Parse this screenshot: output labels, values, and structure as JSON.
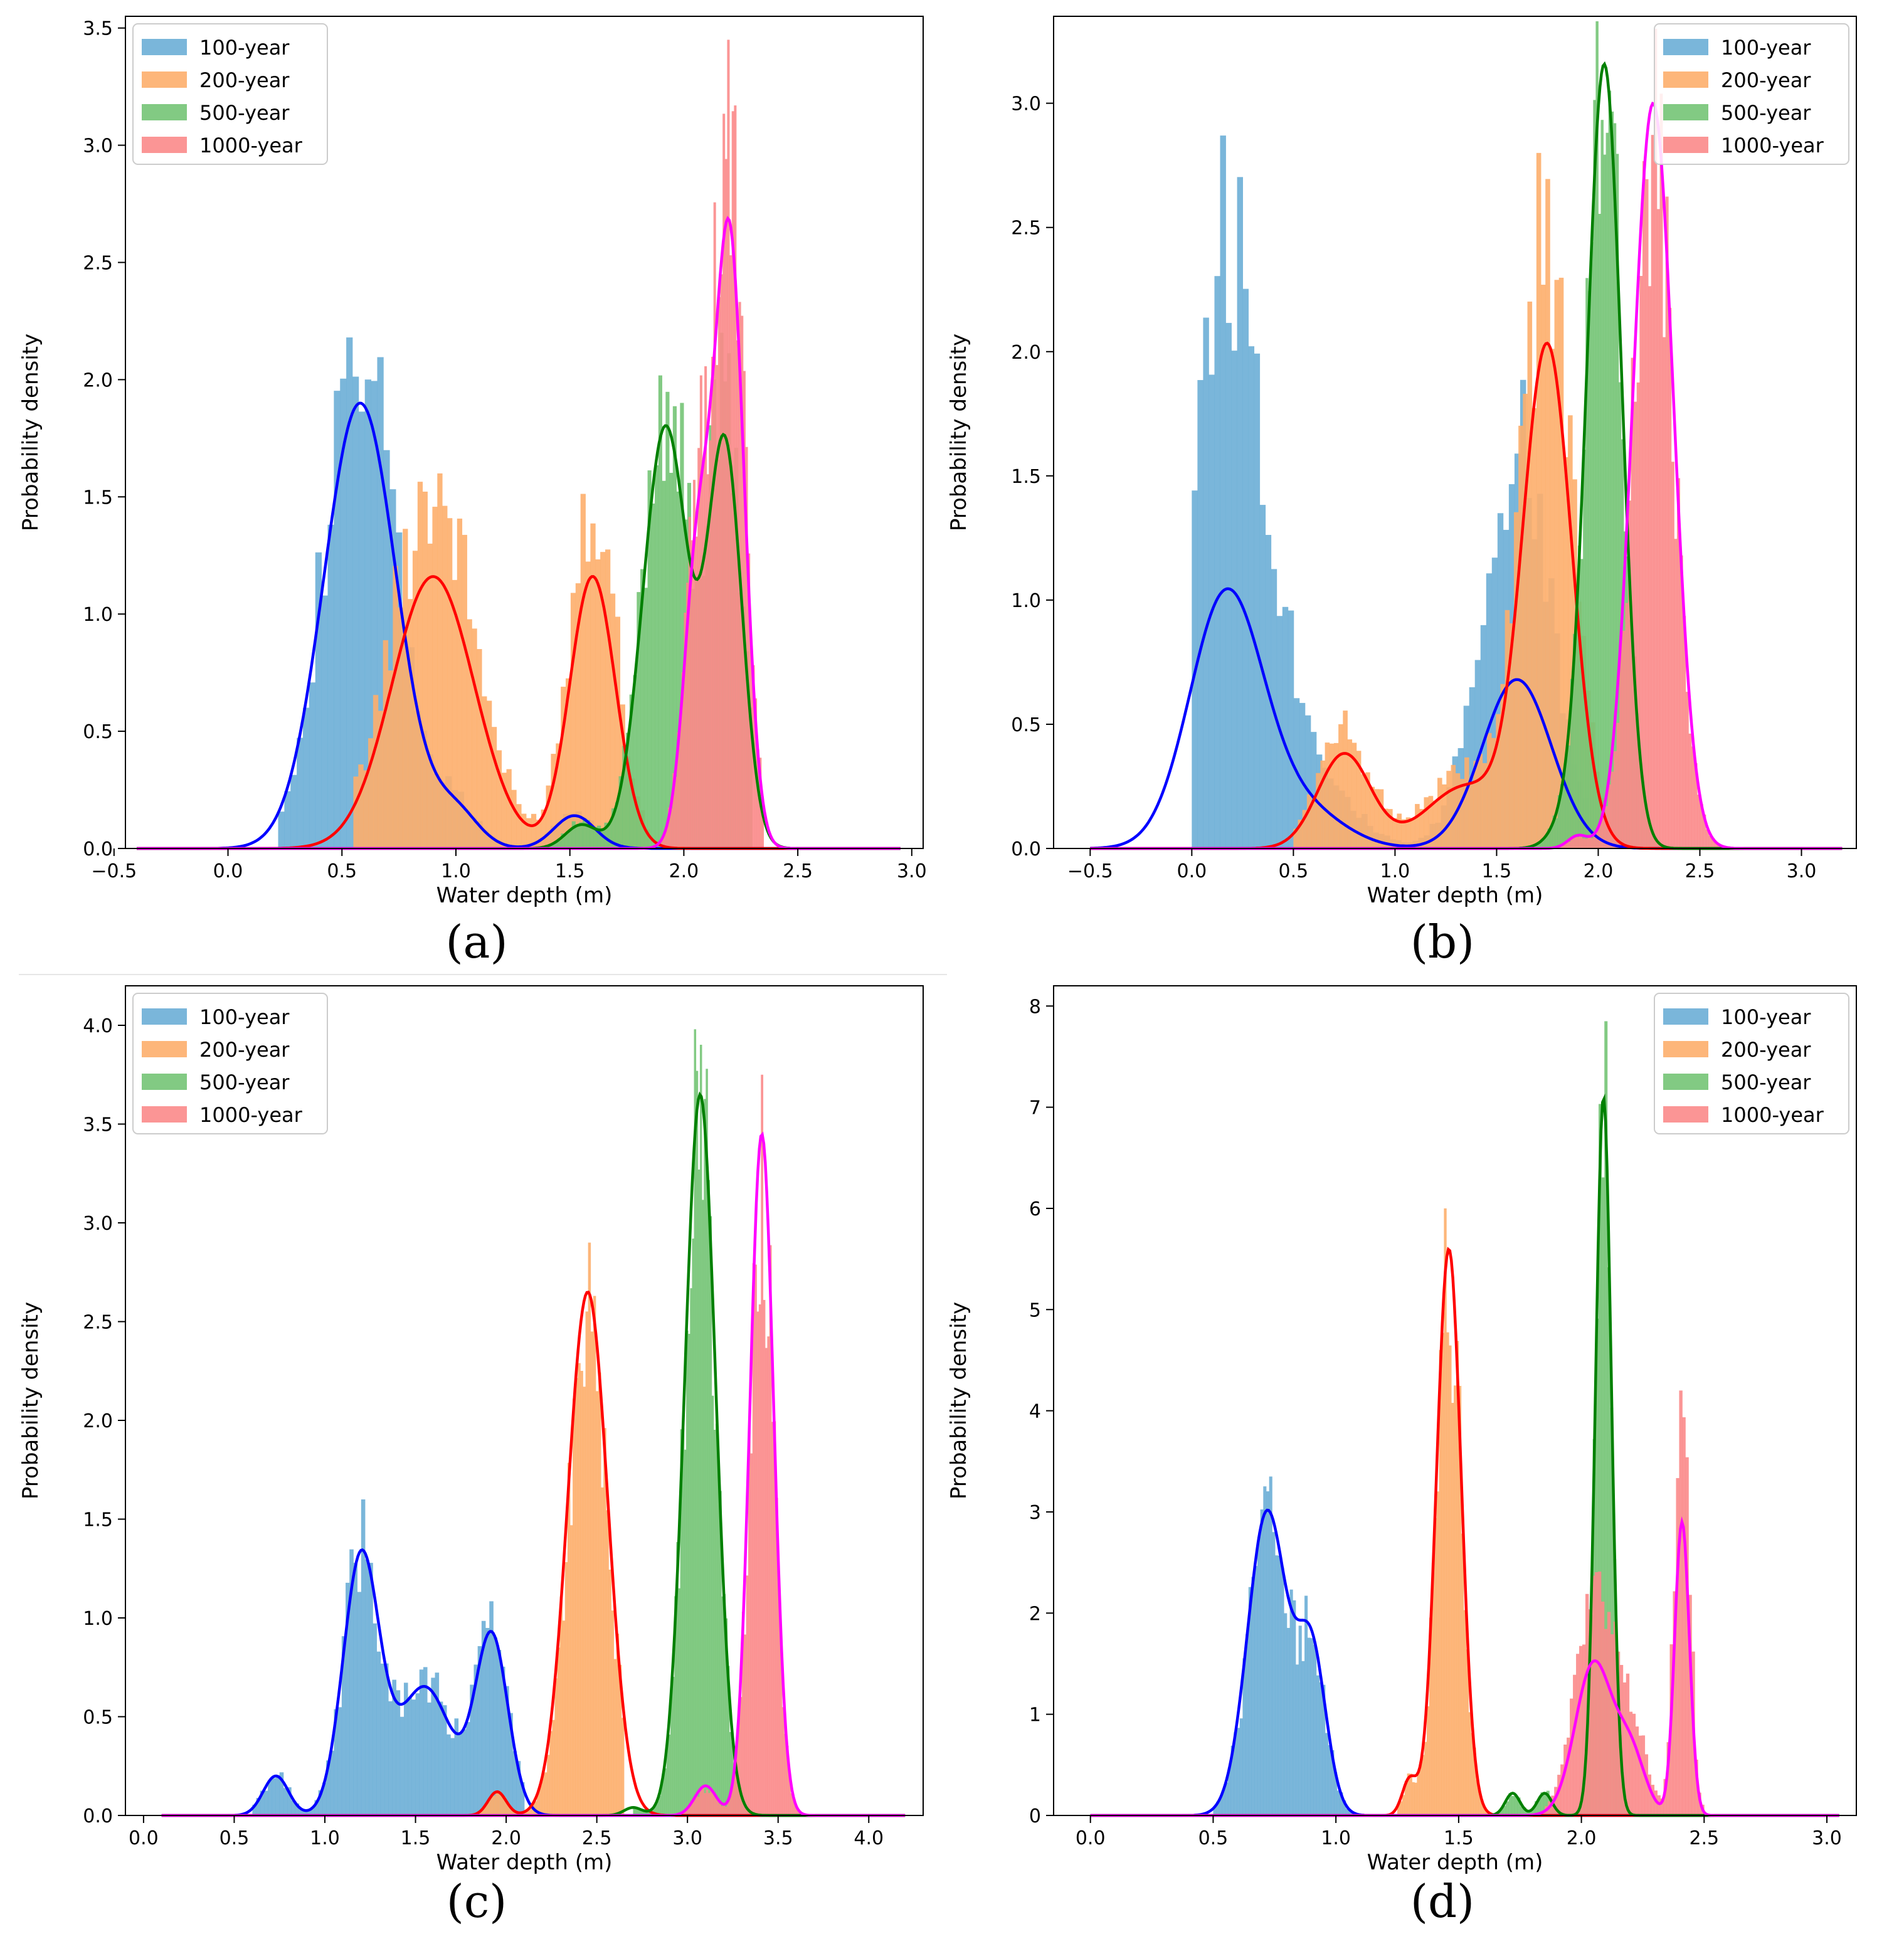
{
  "figure": {
    "panel_labels": [
      "(a)",
      "(b)",
      "(c)",
      "(d)"
    ],
    "colors": {
      "hist": [
        "#6baed6",
        "#fdae6b",
        "#74c476",
        "#fb8a8a"
      ],
      "kde": [
        "#0000ff",
        "#ff0000",
        "#008000",
        "#ff00ff"
      ]
    }
  },
  "chart_data": [
    {
      "type": "histogram+kde",
      "xlabel": "Water depth (m)",
      "ylabel": "Probability density",
      "xlim": [
        -0.45,
        3.05
      ],
      "ylim": [
        0,
        3.55
      ],
      "xticks": [
        -0.5,
        0.0,
        0.5,
        1.0,
        1.5,
        2.0,
        2.5,
        3.0
      ],
      "xtick_labels": [
        "−0.5",
        "0.0",
        "0.5",
        "1.0",
        "1.5",
        "2.0",
        "2.5",
        "3.0"
      ],
      "yticks": [
        0.0,
        0.5,
        1.0,
        1.5,
        2.0,
        2.5,
        3.0,
        3.5
      ],
      "ytick_labels": [
        "0.0",
        "0.5",
        "1.0",
        "1.5",
        "2.0",
        "2.5",
        "3.0",
        "3.5"
      ],
      "legend_position": "top-left",
      "kde_range": [
        -0.4,
        2.95
      ],
      "series": [
        {
          "name": "100-year",
          "hist_range": [
            0.22,
            1.85
          ],
          "bins": 60,
          "kde": [
            [
              0.58,
              0.16,
              1.9
            ],
            [
              1.0,
              0.1,
              0.15
            ],
            [
              1.52,
              0.09,
              0.14
            ]
          ],
          "max_hist": 2.18
        },
        {
          "name": "200-year",
          "hist_range": [
            0.55,
            1.85
          ],
          "bins": 60,
          "kde": [
            [
              0.9,
              0.18,
              1.16
            ],
            [
              1.6,
              0.1,
              1.16
            ]
          ],
          "max_hist": 1.6
        },
        {
          "name": "500-year",
          "hist_range": [
            1.35,
            2.3
          ],
          "bins": 60,
          "kde": [
            [
              1.92,
              0.1,
              1.8
            ],
            [
              2.18,
              0.075,
              1.7
            ],
            [
              1.55,
              0.07,
              0.1
            ]
          ],
          "max_hist": 2.2
        },
        {
          "name": "1000-year",
          "hist_range": [
            1.9,
            2.35
          ],
          "bins": 45,
          "kde": [
            [
              2.2,
              0.065,
              2.6
            ],
            [
              2.06,
              0.06,
              1.2
            ]
          ],
          "max_hist": 3.45
        }
      ]
    },
    {
      "type": "histogram+kde",
      "xlabel": "Water depth (m)",
      "ylabel": "Probability density",
      "xlim": [
        -0.68,
        3.27
      ],
      "ylim": [
        0,
        3.35
      ],
      "xticks": [
        -0.5,
        0.0,
        0.5,
        1.0,
        1.5,
        2.0,
        2.5,
        3.0
      ],
      "xtick_labels": [
        "−0.5",
        "0.0",
        "0.5",
        "1.0",
        "1.5",
        "2.0",
        "2.5",
        "3.0"
      ],
      "yticks": [
        0.0,
        0.5,
        1.0,
        1.5,
        2.0,
        2.5,
        3.0
      ],
      "ytick_labels": [
        "0.0",
        "0.5",
        "1.0",
        "1.5",
        "2.0",
        "2.5",
        "3.0"
      ],
      "legend_position": "top-right",
      "kde_range": [
        -0.5,
        3.2
      ],
      "series": [
        {
          "name": "100-year",
          "hist_range": [
            0.0,
            1.95
          ],
          "bins": 70,
          "kde": [
            [
              0.17,
              0.18,
              1.02
            ],
            [
              1.6,
              0.17,
              0.68
            ],
            [
              0.55,
              0.2,
              0.15
            ]
          ],
          "max_hist": 2.87
        },
        {
          "name": "200-year",
          "hist_range": [
            0.5,
            2.05
          ],
          "bins": 70,
          "kde": [
            [
              0.75,
              0.13,
              0.38
            ],
            [
              1.75,
              0.12,
              2.0
            ],
            [
              1.35,
              0.2,
              0.25
            ]
          ],
          "max_hist": 2.8
        },
        {
          "name": "500-year",
          "hist_range": [
            1.55,
            2.3
          ],
          "bins": 60,
          "kde": [
            [
              2.03,
              0.085,
              3.15
            ],
            [
              1.85,
              0.08,
              0.1
            ]
          ],
          "max_hist": 3.33
        },
        {
          "name": "1000-year",
          "hist_range": [
            1.75,
            2.6
          ],
          "bins": 60,
          "kde": [
            [
              2.27,
              0.1,
              3.0
            ],
            [
              1.9,
              0.05,
              0.05
            ]
          ],
          "max_hist": 3.3
        }
      ]
    },
    {
      "type": "histogram+kde",
      "xlabel": "Water depth (m)",
      "ylabel": "Probability density",
      "xlim": [
        -0.1,
        4.3
      ],
      "ylim": [
        0,
        4.2
      ],
      "xticks": [
        0.0,
        0.5,
        1.0,
        1.5,
        2.0,
        2.5,
        3.0,
        3.5,
        4.0
      ],
      "xtick_labels": [
        "0.0",
        "0.5",
        "1.0",
        "1.5",
        "2.0",
        "2.5",
        "3.0",
        "3.5",
        "4.0"
      ],
      "yticks": [
        0.0,
        0.5,
        1.0,
        1.5,
        2.0,
        2.5,
        3.0,
        3.5,
        4.0
      ],
      "ytick_labels": [
        "0.0",
        "0.5",
        "1.0",
        "1.5",
        "2.0",
        "2.5",
        "3.0",
        "3.5",
        "4.0"
      ],
      "legend_position": "top-left",
      "kde_range": [
        0.1,
        4.2
      ],
      "series": [
        {
          "name": "100-year",
          "hist_range": [
            0.6,
            2.1
          ],
          "bins": 70,
          "kde": [
            [
              0.73,
              0.07,
              0.2
            ],
            [
              1.2,
              0.1,
              1.3
            ],
            [
              1.55,
              0.15,
              0.65
            ],
            [
              1.92,
              0.09,
              0.9
            ]
          ],
          "max_hist": 1.6
        },
        {
          "name": "200-year",
          "hist_range": [
            1.8,
            2.65
          ],
          "bins": 60,
          "kde": [
            [
              2.45,
              0.11,
              2.65
            ],
            [
              1.95,
              0.05,
              0.12
            ]
          ],
          "max_hist": 2.9
        },
        {
          "name": "500-year",
          "hist_range": [
            2.7,
            3.35
          ],
          "bins": 60,
          "kde": [
            [
              3.07,
              0.085,
              3.65
            ],
            [
              2.7,
              0.05,
              0.04
            ]
          ],
          "max_hist": 3.98
        },
        {
          "name": "1000-year",
          "hist_range": [
            2.95,
            3.65
          ],
          "bins": 60,
          "kde": [
            [
              3.41,
              0.065,
              3.45
            ],
            [
              3.1,
              0.06,
              0.15
            ]
          ],
          "max_hist": 3.75
        }
      ]
    },
    {
      "type": "histogram+kde",
      "xlabel": "Water depth (m)",
      "ylabel": "Probability density",
      "xlim": [
        -0.15,
        3.12
      ],
      "ylim": [
        0,
        8.2
      ],
      "xticks": [
        0.0,
        0.5,
        1.0,
        1.5,
        2.0,
        2.5,
        3.0
      ],
      "xtick_labels": [
        "0.0",
        "0.5",
        "1.0",
        "1.5",
        "2.0",
        "2.5",
        "3.0"
      ],
      "yticks": [
        0,
        1,
        2,
        3,
        4,
        5,
        6,
        7,
        8
      ],
      "ytick_labels": [
        "0",
        "1",
        "2",
        "3",
        "4",
        "5",
        "6",
        "7",
        "8"
      ],
      "legend_position": "top-right",
      "kde_range": [
        0.0,
        3.05
      ],
      "series": [
        {
          "name": "100-year",
          "hist_range": [
            0.5,
            1.1
          ],
          "bins": 50,
          "kde": [
            [
              0.72,
              0.08,
              3.0
            ],
            [
              0.9,
              0.06,
              1.6
            ]
          ],
          "max_hist": 3.35
        },
        {
          "name": "200-year",
          "hist_range": [
            1.25,
            1.65
          ],
          "bins": 40,
          "kde": [
            [
              1.46,
              0.05,
              5.6
            ],
            [
              1.3,
              0.03,
              0.35
            ]
          ],
          "max_hist": 6.0
        },
        {
          "name": "500-year",
          "hist_range": [
            1.55,
            2.2
          ],
          "bins": 55,
          "kde": [
            [
              2.09,
              0.032,
              7.1
            ],
            [
              1.72,
              0.03,
              0.22
            ],
            [
              1.85,
              0.03,
              0.22
            ]
          ],
          "max_hist": 7.85
        },
        {
          "name": "1000-year",
          "hist_range": [
            1.8,
            2.5
          ],
          "bins": 55,
          "kde": [
            [
              2.05,
              0.075,
              1.5
            ],
            [
              2.2,
              0.06,
              0.6
            ],
            [
              2.41,
              0.03,
              2.9
            ]
          ],
          "max_hist": 4.2
        }
      ]
    }
  ]
}
